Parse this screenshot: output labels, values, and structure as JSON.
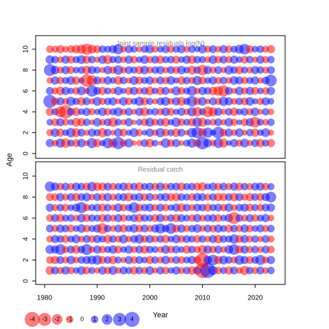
{
  "chart_data": [
    {
      "type": "bubble",
      "title": "Joint sample residuals log(N)",
      "ylabel": "Age",
      "xlim": [
        1978.3,
        2025.7
      ],
      "ylim": [
        -0.46,
        11.3
      ],
      "yticks": [
        0,
        2,
        4,
        6,
        8,
        10
      ],
      "x": [
        1981,
        1982,
        1983,
        1984,
        1985,
        1986,
        1987,
        1988,
        1989,
        1990,
        1991,
        1992,
        1993,
        1994,
        1995,
        1996,
        1997,
        1998,
        1999,
        2000,
        2001,
        2002,
        2003,
        2004,
        2005,
        2006,
        2007,
        2008,
        2009,
        2010,
        2011,
        2012,
        2013,
        2014,
        2015,
        2016,
        2017,
        2018,
        2019,
        2020,
        2021,
        2022,
        2023
      ],
      "ages": [
        1,
        2,
        3,
        4,
        5,
        6,
        7,
        8,
        9,
        10
      ],
      "residuals": [
        [
          1.2,
          -0.8,
          1.5,
          -1.6,
          0.9,
          -1.1,
          1.3,
          -0.6,
          1.8,
          -1.2,
          0.7,
          1.9,
          -1.4,
          2.6,
          -0.9,
          1.4,
          -0.5,
          -0.7,
          1.1,
          -1.3,
          0.8,
          -0.4,
          1.6,
          -1.0,
          1.2,
          -0.6,
          0.9,
          1.5,
          -1.1,
          2.8,
          1.3,
          -0.8,
          1.7,
          -1.5,
          0.6,
          1.2,
          -0.9,
          1.4,
          -0.7,
          1.1,
          -1.3,
          0.9,
          -1.2
        ],
        [
          -0.9,
          1.3,
          -1.2,
          0.8,
          1.6,
          -1.4,
          1.1,
          -0.7,
          1.2,
          0.9,
          -1.5,
          1.0,
          -0.6,
          1.3,
          -1.1,
          0.7,
          1.4,
          -0.9,
          0.6,
          1.2,
          -0.8,
          1.5,
          -1.0,
          0.9,
          -1.3,
          1.1,
          -0.5,
          1.6,
          2.2,
          -1.4,
          1.8,
          0.7,
          2.4,
          -1.0,
          1.2,
          -0.8,
          1.3,
          -0.6,
          1.0,
          -1.2,
          0.8,
          1.4,
          -0.7
        ],
        [
          0.8,
          -1.1,
          1.2,
          -0.9,
          0.7,
          -1.4,
          -1.2,
          1.0,
          -0.6,
          1.3,
          -0.8,
          1.1,
          -1.6,
          0.9,
          -0.7,
          1.2,
          -0.5,
          0.8,
          -1.1,
          1.4,
          -0.9,
          1.0,
          -1.3,
          0.7,
          1.5,
          -1.0,
          0.9,
          -1.2,
          1.6,
          -1.5,
          0.8,
          -0.9,
          1.1,
          -0.7,
          1.3,
          -1.0,
          0.6,
          -1.1,
          1.2,
          -2.0,
          0.9,
          -0.8,
          1.0
        ],
        [
          -1.2,
          0.9,
          -2.1,
          -3.2,
          1.1,
          -1.3,
          0.8,
          1.2,
          -0.9,
          0.7,
          1.3,
          -1.0,
          0.9,
          1.4,
          -0.8,
          1.1,
          -0.6,
          1.2,
          -1.4,
          0.8,
          1.0,
          -0.9,
          1.3,
          -1.1,
          0.7,
          1.2,
          -0.8,
          1.5,
          -1.6,
          0.9,
          -2.0,
          -1.5,
          1.2,
          -0.7,
          1.0,
          -1.3,
          0.8,
          1.1,
          -0.9,
          1.3,
          -0.6,
          1.0,
          -0.8
        ],
        [
          3.0,
          -1.1,
          1.2,
          -0.8,
          1.5,
          0.9,
          -1.3,
          1.1,
          -0.7,
          1.4,
          -0.9,
          1.0,
          1.2,
          -0.6,
          1.3,
          -1.0,
          0.8,
          1.5,
          -1.2,
          0.9,
          -0.7,
          1.1,
          1.4,
          -0.8,
          1.2,
          -1.4,
          0.9,
          2.0,
          -1.0,
          1.3,
          -0.6,
          1.1,
          -0.9,
          1.5,
          1.2,
          -0.8,
          1.0,
          -1.1,
          1.3,
          0.7,
          -0.9,
          1.2,
          0.8
        ],
        [
          1.1,
          -0.9,
          -1.3,
          1.2,
          0.8,
          -1.0,
          1.4,
          -0.7,
          2.3,
          1.1,
          -1.2,
          0.9,
          -0.8,
          1.3,
          0.7,
          -1.1,
          1.2,
          -0.9,
          1.0,
          -1.4,
          0.8,
          -1.2,
          1.1,
          -0.6,
          1.4,
          -1.0,
          0.9,
          1.7,
          -0.8,
          1.2,
          1.0,
          -1.3,
          -1.6,
          -2.2,
          1.1,
          -0.7,
          1.3,
          -0.9,
          1.2,
          -1.1,
          0.8,
          -1.0,
          1.2
        ],
        [
          -0.8,
          1.2,
          -1.0,
          0.9,
          1.3,
          -1.2,
          0.7,
          -2.8,
          -1.9,
          1.1,
          -0.9,
          1.2,
          0.8,
          -1.3,
          1.0,
          -0.7,
          1.4,
          -1.1,
          0.9,
          1.2,
          -0.8,
          1.1,
          -1.0,
          1.3,
          0.7,
          -1.2,
          1.0,
          -0.9,
          1.5,
          -1.1,
          0.8,
          1.2,
          -0.9,
          1.0,
          -0.8,
          1.3,
          1.1,
          -1.0,
          0.9,
          1.2,
          -0.7,
          1.1,
          2.4
        ],
        [
          2.5,
          1.3,
          -0.9,
          1.2,
          -1.1,
          0.8,
          1.0,
          -1.3,
          1.2,
          0.9,
          -0.7,
          1.3,
          -1.0,
          1.6,
          -0.8,
          1.1,
          0.9,
          -1.2,
          1.3,
          -0.9,
          1.0,
          1.2,
          -0.8,
          1.1,
          -1.0,
          1.3,
          0.8,
          -1.4,
          1.0,
          -2.0,
          1.2,
          -0.9,
          1.1,
          -0.7,
          1.4,
          1.0,
          -1.2,
          0.9,
          -0.8,
          1.2,
          1.0,
          -0.9,
          1.1
        ],
        [
          1.3,
          1.0,
          -0.8,
          1.2,
          -1.1,
          0.9,
          1.4,
          -1.2,
          1.0,
          -0.7,
          1.3,
          -1.5,
          0.9,
          1.1,
          -0.8,
          1.2,
          -1.0,
          0.8,
          1.3,
          -0.9,
          1.1,
          -1.2,
          0.9,
          1.0,
          -1.1,
          0.8,
          1.2,
          -1.3,
          1.0,
          0.9,
          -0.8,
          1.3,
          -1.0,
          1.1,
          -0.9,
          1.2,
          0.8,
          -1.1,
          1.0,
          -0.7,
          1.2,
          -0.9,
          1.0
        ],
        [
          -1.0,
          -0.9,
          -1.2,
          -0.8,
          -1.1,
          -1.3,
          -1.5,
          -2.2,
          -1.4,
          -1.1,
          1.0,
          0.9,
          1.2,
          1.8,
          -0.8,
          1.1,
          0.9,
          -0.7,
          1.0,
          1.2,
          -0.9,
          0.8,
          1.1,
          -1.0,
          0.9,
          1.2,
          -0.8,
          1.0,
          0.7,
          1.3,
          -0.9,
          1.1,
          -0.8,
          1.2,
          -1.0,
          0.9,
          1.4,
          2.0,
          -1.1,
          0.8,
          1.0,
          -0.9,
          -1.2
        ]
      ]
    },
    {
      "type": "bubble",
      "title": "Residual catch",
      "xlabel": "Year",
      "xlim": [
        1978.3,
        2025.7
      ],
      "ylim": [
        -0.33,
        11.37
      ],
      "xticks": [
        1980,
        1990,
        2000,
        2010,
        2020
      ],
      "yticks": [
        0,
        2,
        4,
        6,
        8,
        10
      ],
      "x": [
        1981,
        1982,
        1983,
        1984,
        1985,
        1986,
        1987,
        1988,
        1989,
        1990,
        1991,
        1992,
        1993,
        1994,
        1995,
        1996,
        1997,
        1998,
        1999,
        2000,
        2001,
        2002,
        2003,
        2004,
        2005,
        2006,
        2007,
        2008,
        2009,
        2010,
        2011,
        2012,
        2013,
        2014,
        2015,
        2016,
        2017,
        2018,
        2019,
        2020,
        2021,
        2022,
        2023
      ],
      "ages": [
        1,
        2,
        3,
        4,
        5,
        6,
        7,
        8,
        9
      ],
      "residuals": [
        [
          -1.3,
          1.1,
          -0.9,
          1.2,
          -1.0,
          0.8,
          1.3,
          -1.1,
          0.9,
          -0.7,
          1.2,
          -1.0,
          1.4,
          -0.8,
          1.1,
          0.9,
          -1.2,
          1.0,
          -0.9,
          1.3,
          -0.7,
          1.1,
          -1.0,
          0.8,
          1.2,
          -0.9,
          1.0,
          -1.3,
          1.1,
          -4.0,
          4.0,
          1.5,
          -1.0,
          0.9,
          -1.2,
          1.1,
          -0.8,
          -1.5,
          1.0,
          -0.9,
          1.1,
          -0.8,
          1.0
        ],
        [
          -1.0,
          -1.2,
          1.1,
          -0.9,
          1.3,
          -0.8,
          1.0,
          1.2,
          1.4,
          1.6,
          -1.1,
          1.0,
          -1.3,
          0.9,
          -0.7,
          1.2,
          -1.0,
          1.1,
          0.8,
          -1.2,
          1.0,
          -0.9,
          1.3,
          -0.8,
          1.1,
          -1.0,
          0.9,
          1.2,
          -1.1,
          -3.5,
          1.3,
          2.0,
          -1.2,
          1.4,
          1.0,
          -0.9,
          1.6,
          1.2,
          -1.1,
          1.0,
          1.8,
          -0.9,
          1.2
        ],
        [
          1.4,
          1.2,
          2.0,
          -0.9,
          1.1,
          -1.3,
          1.0,
          2.1,
          -0.8,
          1.2,
          -1.0,
          0.9,
          1.3,
          -1.1,
          0.8,
          1.2,
          -0.9,
          1.1,
          -1.2,
          1.0,
          0.9,
          -0.8,
          1.3,
          -1.0,
          1.1,
          0.8,
          -1.2,
          1.0,
          -0.9,
          -1.4,
          1.2,
          -1.0,
          1.1,
          -0.8,
          1.3,
          2.0,
          -1.1,
          1.2,
          -0.9,
          1.0,
          -0.8,
          1.1,
          -1.0
        ],
        [
          -0.9,
          1.2,
          1.0,
          -1.1,
          0.9,
          1.3,
          -0.8,
          1.1,
          -1.0,
          1.2,
          0.9,
          -1.3,
          1.0,
          -0.9,
          1.4,
          -0.8,
          1.1,
          1.5,
          -1.0,
          1.2,
          -0.9,
          1.0,
          -1.2,
          0.8,
          1.3,
          -1.0,
          1.1,
          0.9,
          -1.1,
          1.0,
          -0.8,
          1.2,
          -1.3,
          1.0,
          0.9,
          1.6,
          -1.1,
          1.2,
          -0.9,
          1.0,
          -0.7,
          1.1,
          -0.9
        ],
        [
          1.1,
          -0.9,
          1.2,
          1.0,
          -1.1,
          0.8,
          1.3,
          -1.0,
          0.9,
          1.2,
          -2.1,
          1.0,
          -0.8,
          1.1,
          -1.2,
          0.9,
          1.3,
          -1.0,
          1.1,
          -0.9,
          1.2,
          1.8,
          1.0,
          2.0,
          -1.1,
          1.2,
          -0.9,
          1.0,
          1.3,
          -0.8,
          1.1,
          -1.0,
          1.2,
          0.9,
          -1.1,
          1.0,
          -0.9,
          1.2,
          -1.0,
          0.8,
          1.1,
          -0.9,
          1.0
        ],
        [
          -1.0,
          1.1,
          -1.2,
          0.9,
          1.0,
          -0.8,
          1.3,
          -1.1,
          1.0,
          0.9,
          -1.2,
          1.1,
          -0.9,
          1.2,
          -1.0,
          0.8,
          1.1,
          -1.3,
          1.0,
          0.9,
          -1.1,
          1.2,
          -0.8,
          1.0,
          -1.2,
          1.1,
          0.9,
          -1.0,
          1.2,
          -0.9,
          1.0,
          1.1,
          -1.1,
          0.8,
          1.2,
          -2.5,
          1.0,
          -0.9,
          1.1,
          -1.0,
          0.9,
          1.2,
          -0.8
        ],
        [
          1.2,
          -0.9,
          1.0,
          -1.1,
          0.8,
          1.2,
          2.2,
          -1.0,
          0.9,
          1.1,
          -1.2,
          1.0,
          -0.8,
          1.3,
          -1.0,
          0.9,
          2.0,
          -1.1,
          1.0,
          1.2,
          -0.9,
          1.1,
          -1.0,
          0.8,
          1.2,
          -1.3,
          1.0,
          -0.9,
          1.1,
          1.0,
          -1.2,
          0.9,
          1.1,
          -1.0,
          1.3,
          -0.8,
          1.0,
          1.2,
          -1.1,
          0.9,
          -1.0,
          1.1,
          1.2
        ],
        [
          -1.1,
          -1.0,
          1.2,
          -0.9,
          1.1,
          -1.2,
          1.0,
          1.3,
          -0.8,
          1.1,
          -1.0,
          1.2,
          -0.9,
          1.0,
          1.1,
          -1.3,
          0.9,
          1.2,
          -1.0,
          1.1,
          -0.8,
          1.0,
          1.2,
          -1.1,
          -1.2,
          1.0,
          0.9,
          -1.0,
          1.2,
          1.1,
          -0.9,
          1.0,
          -1.2,
          -1.1,
          1.0,
          -1.3,
          1.1,
          -0.9,
          -1.2,
          1.0,
          -1.1,
          1.2,
          2.0
        ],
        [
          1.8,
          1.2,
          -1.0,
          1.1,
          -0.9,
          1.2,
          1.0,
          -1.1,
          1.6,
          -1.3,
          -1.2,
          1.1,
          -1.0,
          0.9,
          1.2,
          -1.1,
          1.0,
          -1.3,
          0.9,
          1.1,
          -1.0,
          1.2,
          -0.9,
          1.0,
          1.1,
          -1.2,
          0.9,
          1.0,
          -1.1,
          -1.3,
          0.8,
          1.2,
          -1.0,
          1.1,
          -0.9,
          1.2,
          -1.1,
          1.0,
          -0.9,
          1.1,
          1.2,
          -1.0,
          0.9
        ]
      ]
    },
    {
      "type": "size-legend",
      "values": [
        -4,
        -3,
        -2,
        -1,
        0,
        1,
        2,
        3,
        4
      ]
    }
  ]
}
